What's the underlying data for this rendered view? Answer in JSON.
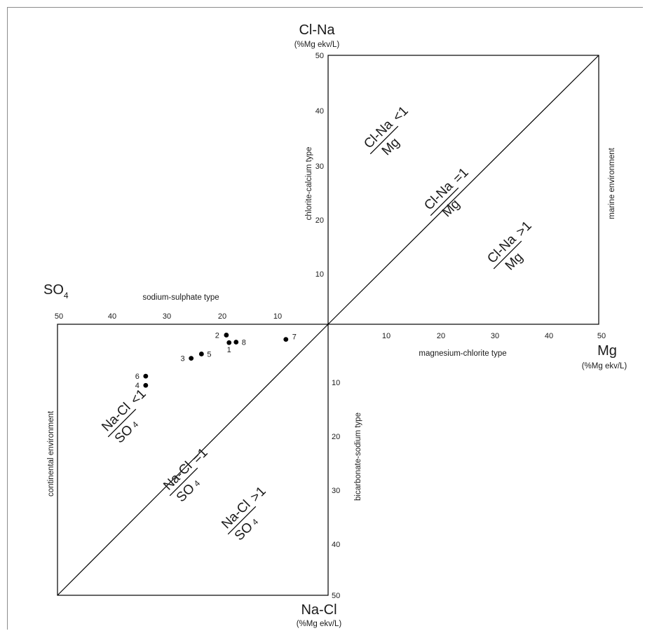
{
  "axes": {
    "cl_na": {
      "name": "Cl-Na",
      "unit": "(%Mg ekv/L)"
    },
    "mg": {
      "name": "Mg",
      "unit": "(%Mg ekv/L)"
    },
    "na_cl": {
      "name": "Na-Cl",
      "unit": "(%Mg ekv/L)"
    },
    "so4": {
      "name": "SO",
      "sub": "4"
    }
  },
  "region_labels": {
    "chlorite_calcium": "chlorite-calcium type",
    "marine": "marine environment",
    "sodium_sulphate": "sodium-sulphate type",
    "magnesium_chlorite": "magnesium-chlorite type",
    "continental": "continental environment",
    "bicarbonate_sodium": "bicarbonate-sodium type"
  },
  "ratios": {
    "upper": {
      "num": "Cl-Na",
      "den": "Mg",
      "lt": "<1",
      "eq": "=1",
      "gt": ">1"
    },
    "lower": {
      "num": "Na-Cl",
      "den": "SO",
      "den_sub": "4",
      "lt": "<1",
      "eq": "=1",
      "gt": ">1"
    }
  },
  "ticks": {
    "mg": [
      "10",
      "20",
      "30",
      "40",
      "50"
    ],
    "cl_na": [
      "10",
      "20",
      "30",
      "40",
      "50"
    ],
    "so4": [
      "50",
      "40",
      "30",
      "20",
      "10"
    ],
    "na_cl": [
      "10",
      "20",
      "30",
      "40",
      "50"
    ]
  },
  "chart_data": {
    "type": "scatter",
    "xlabel": "SO4",
    "ylabel": "Na-Cl",
    "xlim": [
      50,
      0
    ],
    "ylim": [
      0,
      50
    ],
    "points": [
      {
        "label": "1",
        "so4": 18.3,
        "na_cl": 3.4
      },
      {
        "label": "2",
        "so4": 18.8,
        "na_cl": 2.0
      },
      {
        "label": "3",
        "so4": 25.3,
        "na_cl": 6.3
      },
      {
        "label": "4",
        "so4": 33.7,
        "na_cl": 11.3
      },
      {
        "label": "5",
        "so4": 23.4,
        "na_cl": 5.5
      },
      {
        "label": "6",
        "so4": 33.7,
        "na_cl": 9.6
      },
      {
        "label": "7",
        "so4": 7.8,
        "na_cl": 2.8
      },
      {
        "label": "8",
        "so4": 17.0,
        "na_cl": 3.3
      }
    ]
  }
}
